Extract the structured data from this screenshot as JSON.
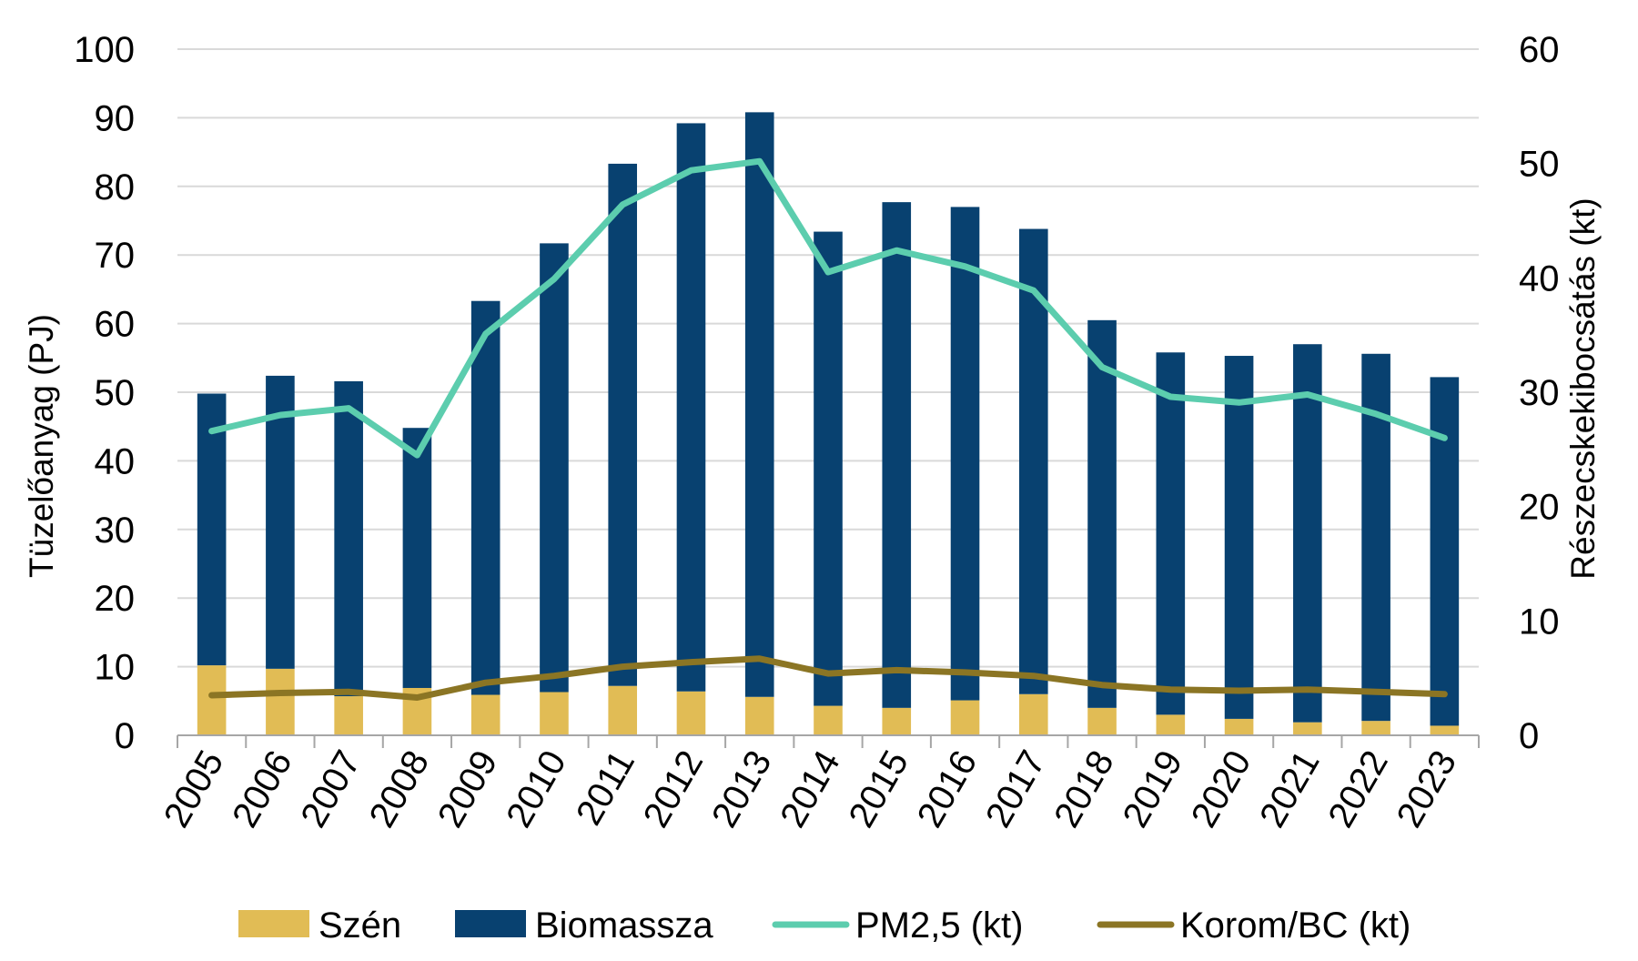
{
  "chart_data": {
    "type": "bar",
    "stacked": true,
    "categories": [
      "2005",
      "2006",
      "2007",
      "2008",
      "2009",
      "2010",
      "2011",
      "2012",
      "2013",
      "2014",
      "2015",
      "2016",
      "2017",
      "2018",
      "2019",
      "2020",
      "2021",
      "2022",
      "2023"
    ],
    "series": [
      {
        "name": "Szén",
        "type": "bar",
        "axis": "left",
        "color": "#E1BC55",
        "values": [
          10.2,
          9.7,
          5.7,
          6.9,
          5.9,
          6.3,
          7.2,
          6.4,
          5.6,
          4.3,
          4.0,
          5.1,
          6.0,
          4.0,
          3.0,
          2.4,
          1.9,
          2.1,
          1.4
        ]
      },
      {
        "name": "Biomassza",
        "type": "bar",
        "axis": "left",
        "color": "#084170",
        "values": [
          39.6,
          42.7,
          45.9,
          37.9,
          57.4,
          65.4,
          76.1,
          82.8,
          85.2,
          69.1,
          73.7,
          71.9,
          67.8,
          56.5,
          52.8,
          52.9,
          55.1,
          53.5,
          50.8
        ]
      },
      {
        "name": "PM2,5 (kt)",
        "type": "line",
        "axis": "right",
        "color": "#5CCDAE",
        "values": [
          26.6,
          28.0,
          28.6,
          24.5,
          35.1,
          39.9,
          46.4,
          49.4,
          50.2,
          40.5,
          42.4,
          41.0,
          38.9,
          32.2,
          29.6,
          29.1,
          29.8,
          28.1,
          26.0
        ]
      },
      {
        "name": "Korom/BC (kt)",
        "type": "line",
        "axis": "right",
        "color": "#8B7524",
        "values": [
          3.5,
          3.7,
          3.8,
          3.3,
          4.6,
          5.2,
          6.0,
          6.4,
          6.7,
          5.4,
          5.7,
          5.5,
          5.2,
          4.4,
          4.0,
          3.9,
          4.0,
          3.8,
          3.6
        ]
      }
    ],
    "ylabel": "Tüzelőanyag (PJ)",
    "y2label": "Részecskekibocsátás (kt)",
    "ylim": [
      0,
      100
    ],
    "y2lim": [
      0,
      60
    ],
    "yticks": [
      "0",
      "10",
      "20",
      "30",
      "40",
      "50",
      "60",
      "70",
      "80",
      "90",
      "100"
    ],
    "y2ticks": [
      "0",
      "10",
      "20",
      "30",
      "40",
      "50",
      "60"
    ],
    "grid": true,
    "legend": "bottom"
  }
}
